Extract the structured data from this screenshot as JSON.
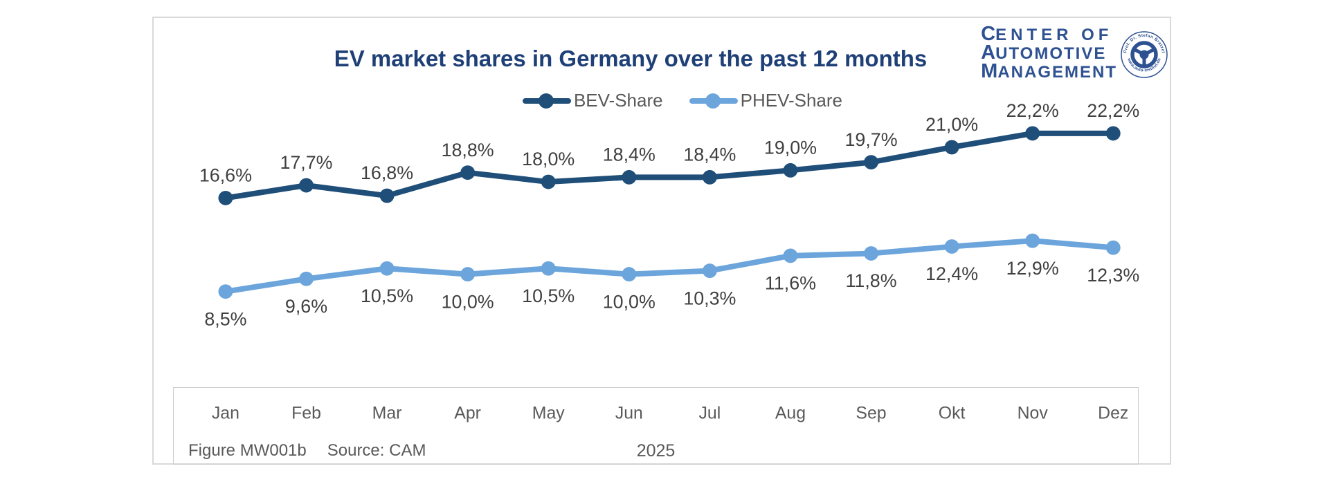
{
  "title": "EV market shares in Germany over the past 12 months",
  "logo": {
    "line1_first": "C",
    "line1_rest": "ENTER OF",
    "line2_first": "A",
    "line2_rest": "UTOMOTIVE",
    "line3_first": "M",
    "line3_rest": "ANAGEMENT",
    "emblem_top_text": "Prof. Dr. Stefan Bratzel",
    "emblem_bottom_text": "www.auto-institut.de",
    "brand_color": "#2e5191"
  },
  "footer": {
    "figure_label": "Figure MW001b",
    "source_label": "Source: CAM",
    "year": "2025"
  },
  "colors": {
    "title": "#1f4077",
    "bev": "#1f4e79",
    "phev": "#6ca5dc",
    "axis_text": "#595959",
    "data_label": "#404040",
    "frame_border": "#d9d9d9"
  },
  "chart_data": {
    "type": "line",
    "categories": [
      "Jan",
      "Feb",
      "Mar",
      "Apr",
      "May",
      "Jun",
      "Jul",
      "Aug",
      "Sep",
      "Okt",
      "Nov",
      "Dez"
    ],
    "x_group_label": "2025",
    "unit": "percent",
    "grid": false,
    "legend_position": "top",
    "ylim_visible": [
      8,
      23
    ],
    "series": [
      {
        "name": "BEV-Share",
        "color": "#1f4e79",
        "values": [
          16.6,
          17.7,
          16.8,
          18.8,
          18.0,
          18.4,
          18.4,
          19.0,
          19.7,
          21.0,
          22.2,
          22.2
        ],
        "labels": [
          "16,6%",
          "17,7%",
          "16,8%",
          "18,8%",
          "18,0%",
          "18,4%",
          "18,4%",
          "19,0%",
          "19,7%",
          "21,0%",
          "22,2%",
          "22,2%"
        ],
        "label_position": "above"
      },
      {
        "name": "PHEV-Share",
        "color": "#6ca5dc",
        "values": [
          8.5,
          9.6,
          10.5,
          10.0,
          10.5,
          10.0,
          10.3,
          11.6,
          11.8,
          12.4,
          12.9,
          12.3
        ],
        "labels": [
          "8,5%",
          "9,6%",
          "10,5%",
          "10,0%",
          "10,5%",
          "10,0%",
          "10,3%",
          "11,6%",
          "11,8%",
          "12,4%",
          "12,9%",
          "12,3%"
        ],
        "label_position": "below"
      }
    ]
  }
}
